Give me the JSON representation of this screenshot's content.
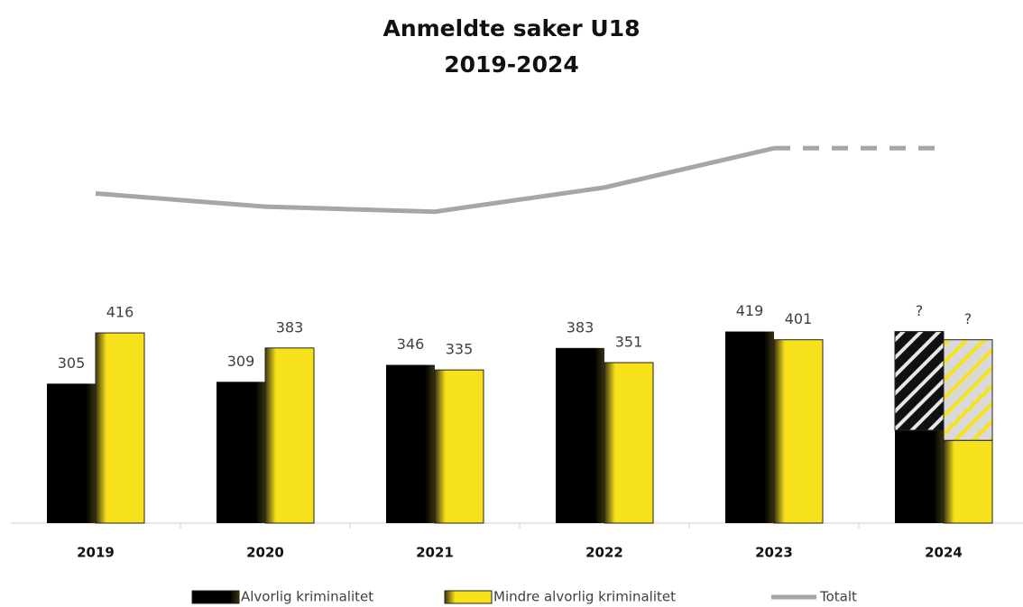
{
  "chart_data": {
    "type": "bar",
    "title": "Anmeldte saker U18",
    "subtitle": "2019-2024",
    "categories": [
      "2019",
      "2020",
      "2021",
      "2022",
      "2023",
      "2024"
    ],
    "ylim": [
      0,
      900
    ],
    "series": [
      {
        "name": "Alvorlig kriminalitet",
        "color": "#000000",
        "values": [
          305,
          309,
          346,
          383,
          419,
          203
        ],
        "value_labels": [
          "305",
          "309",
          "346",
          "383",
          "419",
          null
        ],
        "uncertain_values": [
          null,
          null,
          null,
          null,
          null,
          216
        ],
        "uncertain_labels": [
          null,
          null,
          null,
          null,
          null,
          "?"
        ]
      },
      {
        "name": "Mindre alvorlig kriminalitet",
        "color": "#f7e11b",
        "values": [
          416,
          383,
          335,
          351,
          401,
          181
        ],
        "value_labels": [
          "416",
          "383",
          "335",
          "351",
          "401",
          null
        ],
        "uncertain_values": [
          null,
          null,
          null,
          null,
          null,
          220
        ],
        "uncertain_labels": [
          null,
          null,
          null,
          null,
          null,
          "?"
        ]
      },
      {
        "name": "Totalt",
        "type": "line",
        "color": "#a6a6a6",
        "values": [
          721,
          692,
          681,
          734,
          820,
          820
        ],
        "dashed_from": 4
      }
    ]
  }
}
